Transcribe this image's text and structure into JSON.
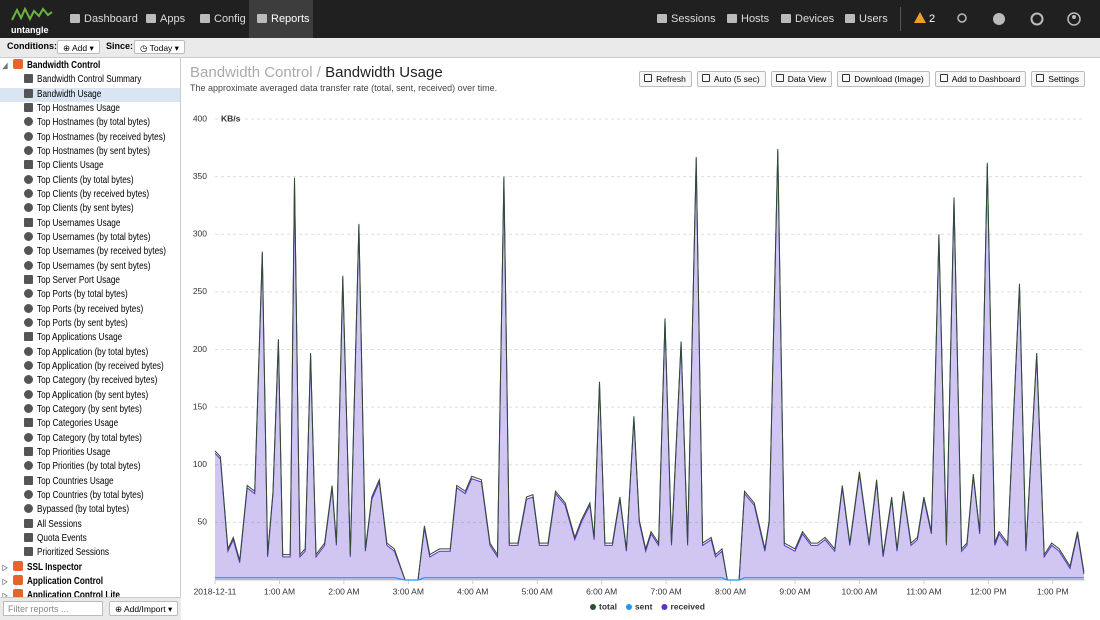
{
  "nav": {
    "logo": "untangle",
    "items": [
      "Dashboard",
      "Apps",
      "Config",
      "Reports"
    ],
    "right": [
      "Sessions",
      "Hosts",
      "Devices",
      "Users"
    ],
    "alerts": 2
  },
  "toolbar": {
    "conditions": "Conditions:",
    "add": "Add",
    "since": "Since:",
    "today": "Today"
  },
  "sidebar": {
    "groups": [
      {
        "name": "Bandwidth Control",
        "items": [
          "Bandwidth Control Summary",
          "Bandwidth Usage",
          "Top Hostnames Usage",
          "Top Hostnames (by total bytes)",
          "Top Hostnames (by received bytes)",
          "Top Hostnames (by sent bytes)",
          "Top Clients Usage",
          "Top Clients (by total bytes)",
          "Top Clients (by received bytes)",
          "Top Clients (by sent bytes)",
          "Top Usernames Usage",
          "Top Usernames (by total bytes)",
          "Top Usernames (by received bytes)",
          "Top Usernames (by sent bytes)",
          "Top Server Port Usage",
          "Top Ports (by total bytes)",
          "Top Ports (by received bytes)",
          "Top Ports (by sent bytes)",
          "Top Applications Usage",
          "Top Application (by total bytes)",
          "Top Application (by received bytes)",
          "Top Category (by received bytes)",
          "Top Application (by sent bytes)",
          "Top Category (by sent bytes)",
          "Top Categories Usage",
          "Top Category (by total bytes)",
          "Top Priorities Usage",
          "Top Priorities (by total bytes)",
          "Top Countries Usage",
          "Top Countries (by total bytes)",
          "Bypassed (by total bytes)",
          "All Sessions",
          "Quota Events",
          "Prioritized Sessions"
        ]
      },
      {
        "name": "SSL Inspector"
      },
      {
        "name": "Application Control"
      },
      {
        "name": "Application Control Lite"
      }
    ],
    "filter_placeholder": "Filter reports ...",
    "add_import": "Add/Import"
  },
  "report": {
    "breadcrumb": "Bandwidth Control",
    "title": "Bandwidth Usage",
    "description": "The approximate averaged data transfer rate (total, sent, received) over time.",
    "buttons": [
      "Refresh",
      "Auto (5 sec)",
      "Data View",
      "Download (Image)",
      "Add to Dashboard",
      "Settings"
    ]
  },
  "chart_data": {
    "type": "area",
    "y_label": "KB/s",
    "x": [
      0,
      5,
      12,
      17,
      23,
      30,
      37,
      44,
      49,
      54,
      59,
      63,
      70,
      74,
      79,
      84,
      89,
      94,
      102,
      109,
      113,
      119,
      126,
      134,
      140,
      146,
      153,
      160,
      167,
      177,
      189,
      195,
      200,
      209,
      219,
      225,
      233,
      239,
      248,
      256,
      263,
      269,
      274,
      282,
      290,
      296,
      302,
      310,
      317,
      326,
      335,
      341,
      349,
      353,
      358,
      363,
      370,
      377,
      383,
      390,
      395,
      401,
      406,
      413,
      419,
      425,
      434,
      440,
      448,
      454,
      462,
      466,
      472,
      477,
      488,
      493,
      502,
      512,
      516,
      524,
      530,
      540,
      547,
      555,
      561,
      568,
      577,
      584,
      591,
      600,
      609,
      616,
      622,
      630,
      635,
      641,
      648,
      654,
      660,
      667,
      674,
      681,
      688,
      695,
      700,
      706,
      712,
      719,
      726,
      730,
      738,
      749,
      755,
      765,
      772,
      779,
      786,
      796,
      803,
      809
    ],
    "series": [
      {
        "name": "total",
        "color": "#2e4d2e",
        "values": [
          112,
          107,
          27,
          37,
          17,
          82,
          77,
          285,
          22,
          77,
          209,
          22,
          22,
          349,
          22,
          27,
          197,
          22,
          32,
          82,
          32,
          264,
          22,
          309,
          27,
          72,
          87,
          32,
          27,
          0,
          0,
          47,
          22,
          27,
          27,
          82,
          77,
          90,
          87,
          32,
          22,
          350,
          32,
          32,
          72,
          74,
          32,
          32,
          77,
          67,
          37,
          52,
          67,
          37,
          172,
          32,
          32,
          72,
          27,
          142,
          52,
          27,
          42,
          32,
          227,
          32,
          207,
          32,
          367,
          32,
          37,
          22,
          27,
          0,
          0,
          77,
          67,
          27,
          52,
          374,
          32,
          27,
          42,
          32,
          32,
          37,
          27,
          82,
          32,
          94,
          32,
          87,
          22,
          72,
          27,
          77,
          32,
          37,
          72,
          42,
          300,
          32,
          332,
          27,
          32,
          92,
          42,
          362,
          32,
          42,
          32,
          257,
          27,
          197,
          22,
          32,
          27,
          12,
          42,
          7
        ]
      },
      {
        "name": "sent",
        "color": "#2196f3",
        "values": [
          2,
          2,
          2,
          2,
          2,
          2,
          2,
          2,
          2,
          2,
          2,
          2,
          2,
          2,
          2,
          2,
          2,
          2,
          2,
          2,
          2,
          2,
          2,
          2,
          2,
          2,
          2,
          2,
          2,
          0,
          0,
          2,
          2,
          2,
          2,
          2,
          2,
          2,
          2,
          2,
          2,
          2,
          2,
          2,
          2,
          2,
          2,
          2,
          2,
          2,
          2,
          2,
          2,
          2,
          2,
          2,
          2,
          2,
          2,
          2,
          2,
          2,
          2,
          2,
          2,
          2,
          2,
          2,
          2,
          2,
          2,
          2,
          2,
          0,
          0,
          2,
          2,
          2,
          2,
          2,
          2,
          2,
          2,
          2,
          2,
          2,
          2,
          2,
          2,
          2,
          2,
          2,
          2,
          2,
          2,
          2,
          2,
          2,
          2,
          2,
          2,
          2,
          2,
          2,
          2,
          2,
          2,
          2,
          2,
          2,
          2,
          2,
          2,
          2,
          2,
          2,
          2,
          2,
          2,
          2
        ]
      },
      {
        "name": "received",
        "color": "#5b2fd0",
        "fill": true,
        "values": [
          110,
          105,
          25,
          35,
          15,
          80,
          75,
          283,
          20,
          75,
          207,
          20,
          20,
          347,
          20,
          25,
          195,
          20,
          30,
          80,
          30,
          262,
          20,
          307,
          25,
          70,
          85,
          30,
          25,
          0,
          0,
          45,
          20,
          25,
          25,
          80,
          75,
          88,
          85,
          30,
          20,
          348,
          30,
          30,
          70,
          72,
          30,
          30,
          75,
          65,
          35,
          50,
          65,
          35,
          170,
          30,
          30,
          70,
          25,
          140,
          50,
          25,
          40,
          30,
          225,
          30,
          205,
          30,
          365,
          30,
          35,
          20,
          25,
          0,
          0,
          75,
          65,
          25,
          50,
          372,
          30,
          25,
          40,
          30,
          30,
          35,
          25,
          80,
          30,
          92,
          30,
          85,
          20,
          70,
          25,
          75,
          30,
          35,
          70,
          40,
          298,
          30,
          330,
          25,
          30,
          90,
          40,
          360,
          30,
          40,
          30,
          255,
          25,
          195,
          20,
          30,
          25,
          10,
          40,
          5
        ]
      }
    ],
    "xlim": [
      0,
      810
    ],
    "xticks": [
      {
        "value": 0,
        "label": "2018-12-11"
      },
      {
        "value": 60,
        "label": "1:00 AM"
      },
      {
        "value": 120,
        "label": "2:00 AM"
      },
      {
        "value": 180,
        "label": "3:00 AM"
      },
      {
        "value": 240,
        "label": "4:00 AM"
      },
      {
        "value": 300,
        "label": "5:00 AM"
      },
      {
        "value": 360,
        "label": "6:00 AM"
      },
      {
        "value": 420,
        "label": "7:00 AM"
      },
      {
        "value": 480,
        "label": "8:00 AM"
      },
      {
        "value": 540,
        "label": "9:00 AM"
      },
      {
        "value": 600,
        "label": "10:00 AM"
      },
      {
        "value": 660,
        "label": "11:00 AM"
      },
      {
        "value": 720,
        "label": "12:00 PM"
      },
      {
        "value": 780,
        "label": "1:00 PM"
      }
    ],
    "ylim": [
      0,
      400
    ],
    "yticks": [
      50,
      100,
      150,
      200,
      250,
      300,
      350,
      400
    ],
    "grid": true,
    "legend": "bottom"
  }
}
